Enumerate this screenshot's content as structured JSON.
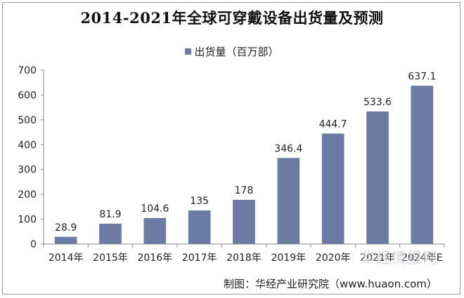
{
  "chart_data": {
    "type": "bar",
    "title": "2014-2021年全球可穿戴设备出货量及预测",
    "categories": [
      "2014年",
      "2015年",
      "2016年",
      "2017年",
      "2018年",
      "2019年",
      "2020年",
      "2021年",
      "2024年E"
    ],
    "series": [
      {
        "name": "出货量（百万部）",
        "values": [
          28.9,
          81.9,
          104.6,
          135,
          178,
          346.4,
          444.7,
          533.6,
          637.1
        ]
      }
    ],
    "data_labels": [
      "28.9",
      "81.9",
      "104.6",
      "135",
      "178",
      "346.4",
      "444.7",
      "533.6",
      "637.1"
    ],
    "yticks": [
      0,
      100,
      200,
      300,
      400,
      500,
      600,
      700
    ],
    "ylim": [
      0,
      700
    ],
    "grid": false,
    "legend_position": "top",
    "bar_color": "#6b7ba3",
    "source": "制图：华经产业研究院（www.huaon.com）",
    "watermark": "华经情报网"
  }
}
